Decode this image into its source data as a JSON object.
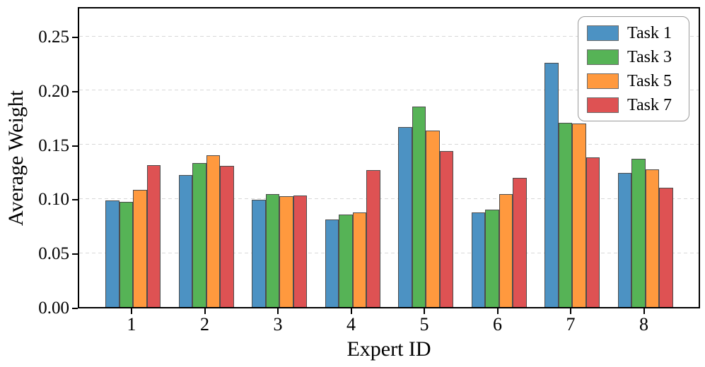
{
  "chart_data": {
    "type": "bar",
    "title": "",
    "xlabel": "Expert ID",
    "ylabel": "Average Weight",
    "categories": [
      "1",
      "2",
      "3",
      "4",
      "5",
      "6",
      "7",
      "8"
    ],
    "series": [
      {
        "name": "Task 1",
        "color": "#4C92C3",
        "values": [
          0.098,
          0.122,
          0.099,
          0.081,
          0.166,
          0.087,
          0.225,
          0.124
        ]
      },
      {
        "name": "Task 3",
        "color": "#56B356",
        "values": [
          0.097,
          0.133,
          0.104,
          0.085,
          0.185,
          0.09,
          0.17,
          0.137
        ]
      },
      {
        "name": "Task 5",
        "color": "#FF993E",
        "values": [
          0.108,
          0.14,
          0.102,
          0.087,
          0.163,
          0.104,
          0.169,
          0.127
        ]
      },
      {
        "name": "Task 7",
        "color": "#DE5253",
        "values": [
          0.131,
          0.13,
          0.103,
          0.126,
          0.144,
          0.119,
          0.138,
          0.11
        ]
      }
    ],
    "ylim": [
      0,
      0.278
    ],
    "yticks": [
      0.0,
      0.05,
      0.1,
      0.15,
      0.2,
      0.25
    ],
    "ytick_labels": [
      "0.00",
      "0.05",
      "0.10",
      "0.15",
      "0.20",
      "0.25"
    ],
    "grid": "horizontal-dashed",
    "legend_position": "upper-right",
    "colors": {
      "bar_edge": "#4d4d4d",
      "grid_line": "#d8d8d8",
      "axis": "#000000",
      "legend_border": "#9a9a9a"
    }
  }
}
